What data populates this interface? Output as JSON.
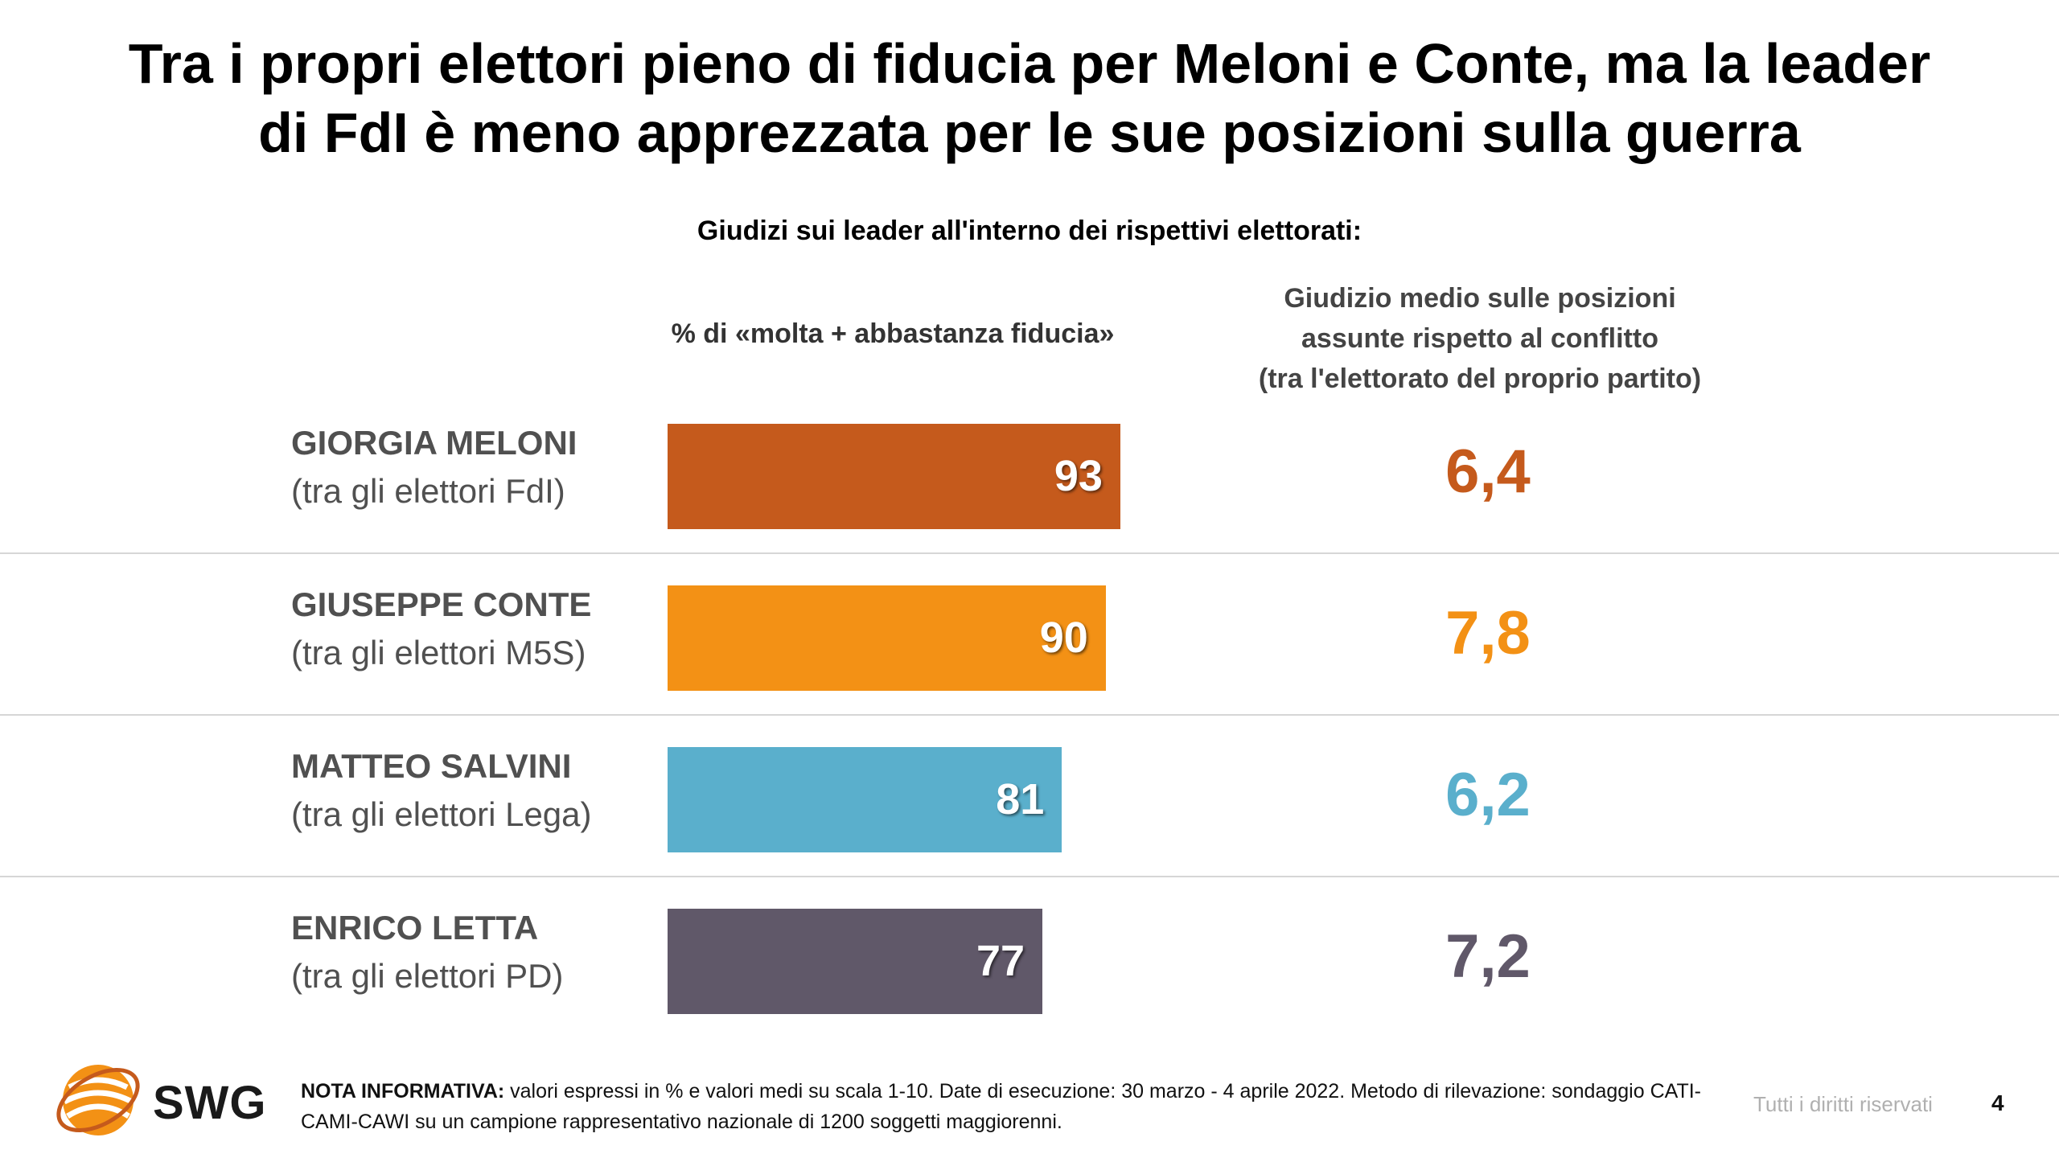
{
  "title_lines": [
    "Tra i propri elettori pieno di fiducia per Meloni e Conte, ma la leader",
    "di FdI è meno apprezzata per le sue posizioni sulla guerra"
  ],
  "subtitle": "Giudizi sui leader all'interno dei rispettivi elettorati:",
  "col_left_header": "% di «molta + abbastanza fiducia»",
  "col_right_header": [
    "Giudizio medio sulle posizioni",
    "assunte rispetto al conflitto",
    "(tra l'elettorato del proprio partito)"
  ],
  "chart_data": {
    "type": "bar",
    "orientation": "horizontal",
    "categories": [
      "GIORGIA MELONI",
      "GIUSEPPE CONTE",
      "MATTEO SALVINI",
      "ENRICO LETTA"
    ],
    "subcategories": [
      "(tra gli elettori FdI)",
      "(tra gli elettori M5S)",
      "(tra gli elettori Lega)",
      "(tra gli elettori PD)"
    ],
    "values": [
      93,
      90,
      81,
      77
    ],
    "scores": [
      "6,4",
      "7,8",
      "6,2",
      "7,2"
    ],
    "colors": [
      "#c55a1c",
      "#f39115",
      "#5aafcc",
      "#605869"
    ],
    "xlim": [
      0,
      100
    ],
    "grid": false,
    "legend": "none"
  },
  "footer": {
    "logo": "SWG",
    "note_label": "NOTA INFORMATIVA:",
    "note_text": " valori espressi in % e valori medi su scala 1-10. Date di esecuzione: 30 marzo - 4 aprile 2022. Metodo di rilevazione: sondaggio CATI-CAMI-CAWI su un campione rappresentativo nazionale di 1200 soggetti maggiorenni.",
    "rights": "Tutti i diritti riservati",
    "page": "4"
  }
}
